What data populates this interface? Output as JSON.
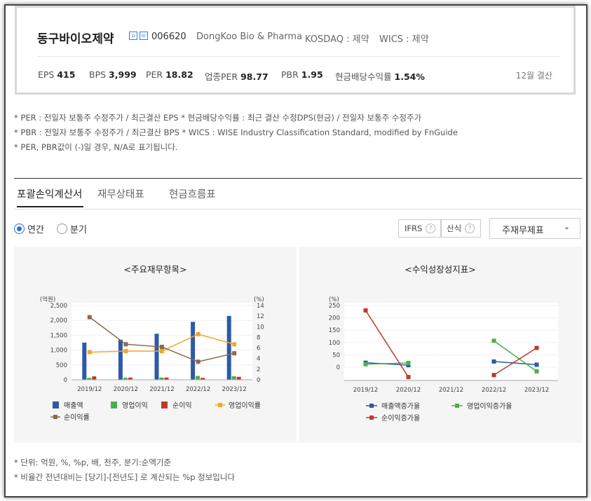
{
  "company": {
    "name": "동구바이오제약",
    "icon1": "home-icon",
    "icon2": "phone-icon",
    "code": "006620",
    "english": "DongKoo Bio & Pharma",
    "market": "KOSDAQ : 제약",
    "wics": "WICS : 제약"
  },
  "stats": [
    {
      "label": "EPS",
      "value": "415"
    },
    {
      "label": "BPS",
      "value": "3,999"
    },
    {
      "label": "PER",
      "value": "18.82"
    },
    {
      "label": "업종PER",
      "value": "98.77"
    },
    {
      "label": "PBR",
      "value": "1.95"
    },
    {
      "label": "현금배당수익률",
      "value": "1.54%"
    }
  ],
  "fiscal": "12월 결산",
  "notes": [
    "* PER : 전일자 보통주 수정주가 / 최근결산 EPS * 현금배당수익률 : 최근 결산 수정DPS(현금) / 전일자 보통주 수정주가",
    "* PBR : 전일자 보통주 수정주가 / 최근결산 BPS * WICS : WISE Industry Classification Standard, modified by FnGuide",
    "* PER, PBR값이 (-)일 경우, N/A로 표기됩니다."
  ],
  "tabs": [
    "포괄손익계산서",
    "재무상태표",
    "현금흐름표"
  ],
  "radios": {
    "annual": "연간",
    "quarter": "분기"
  },
  "pills": {
    "ifrs": "IFRS",
    "sansik": "산식",
    "q": "?"
  },
  "select": {
    "value": "주재무제표",
    "chevron": "chevron-down-icon"
  },
  "chart_data": [
    {
      "type": "bar",
      "title": "<주요재무항목>",
      "left_unit": "(억원)",
      "right_unit": "(%)",
      "categories": [
        "2019/12",
        "2020/12",
        "2021/12",
        "2022/12",
        "2023/12"
      ],
      "y_ticks": [
        "2,500",
        "2,000",
        "1,500",
        "1,000",
        "500",
        "0"
      ],
      "y2_ticks": [
        "14",
        "12",
        "10",
        "8",
        "6",
        "4",
        "2",
        "0"
      ],
      "ylim": [
        0,
        2500
      ],
      "y2lim": [
        0,
        14
      ],
      "series": [
        {
          "name": "매출액",
          "kind": "bar",
          "color": "#2e59a8",
          "values": [
            1250,
            1350,
            1550,
            1950,
            2150
          ]
        },
        {
          "name": "영업이익",
          "kind": "bar",
          "color": "#4ab04a",
          "values": [
            65,
            70,
            75,
            130,
            120
          ]
        },
        {
          "name": "순이익",
          "kind": "bar",
          "color": "#c0392b",
          "values": [
            115,
            75,
            75,
            65,
            100
          ]
        },
        {
          "name": "영업이익률",
          "kind": "line",
          "axis": "right",
          "color": "#f5a623",
          "values": [
            5.2,
            5.4,
            5.4,
            8.6,
            6.7
          ]
        },
        {
          "name": "순이익률",
          "kind": "line",
          "axis": "right",
          "color": "#8b6a4a",
          "values": [
            11.8,
            6.7,
            6.2,
            3.4,
            5.0
          ]
        }
      ]
    },
    {
      "type": "line",
      "title": "<수익성장성지표>",
      "left_unit": "(%)",
      "categories": [
        "2019/12",
        "2020/12",
        "2021/12",
        "2022/12",
        "2023/12"
      ],
      "y_ticks": [
        "250",
        "200",
        "150",
        "100",
        "50",
        "0"
      ],
      "ylim": [
        -40,
        250
      ],
      "series": [
        {
          "name": "매출액증가율",
          "color": "#2e59a8",
          "values": [
            18,
            8,
            null,
            23,
            10
          ]
        },
        {
          "name": "영업이익증가율",
          "color": "#4ab04a",
          "values": [
            12,
            17,
            null,
            107,
            -17
          ]
        },
        {
          "name": "순이익증가율",
          "color": "#c0392b",
          "values": [
            230,
            -40,
            null,
            -32,
            78
          ]
        }
      ]
    }
  ],
  "footer": [
    "* 단위: 억원, %, %p, 배, 천주, 분기:순액기준",
    "* 비율간 전년대비는 [당기]-[전년도] 로 계산되는 %p 정보입니다"
  ]
}
